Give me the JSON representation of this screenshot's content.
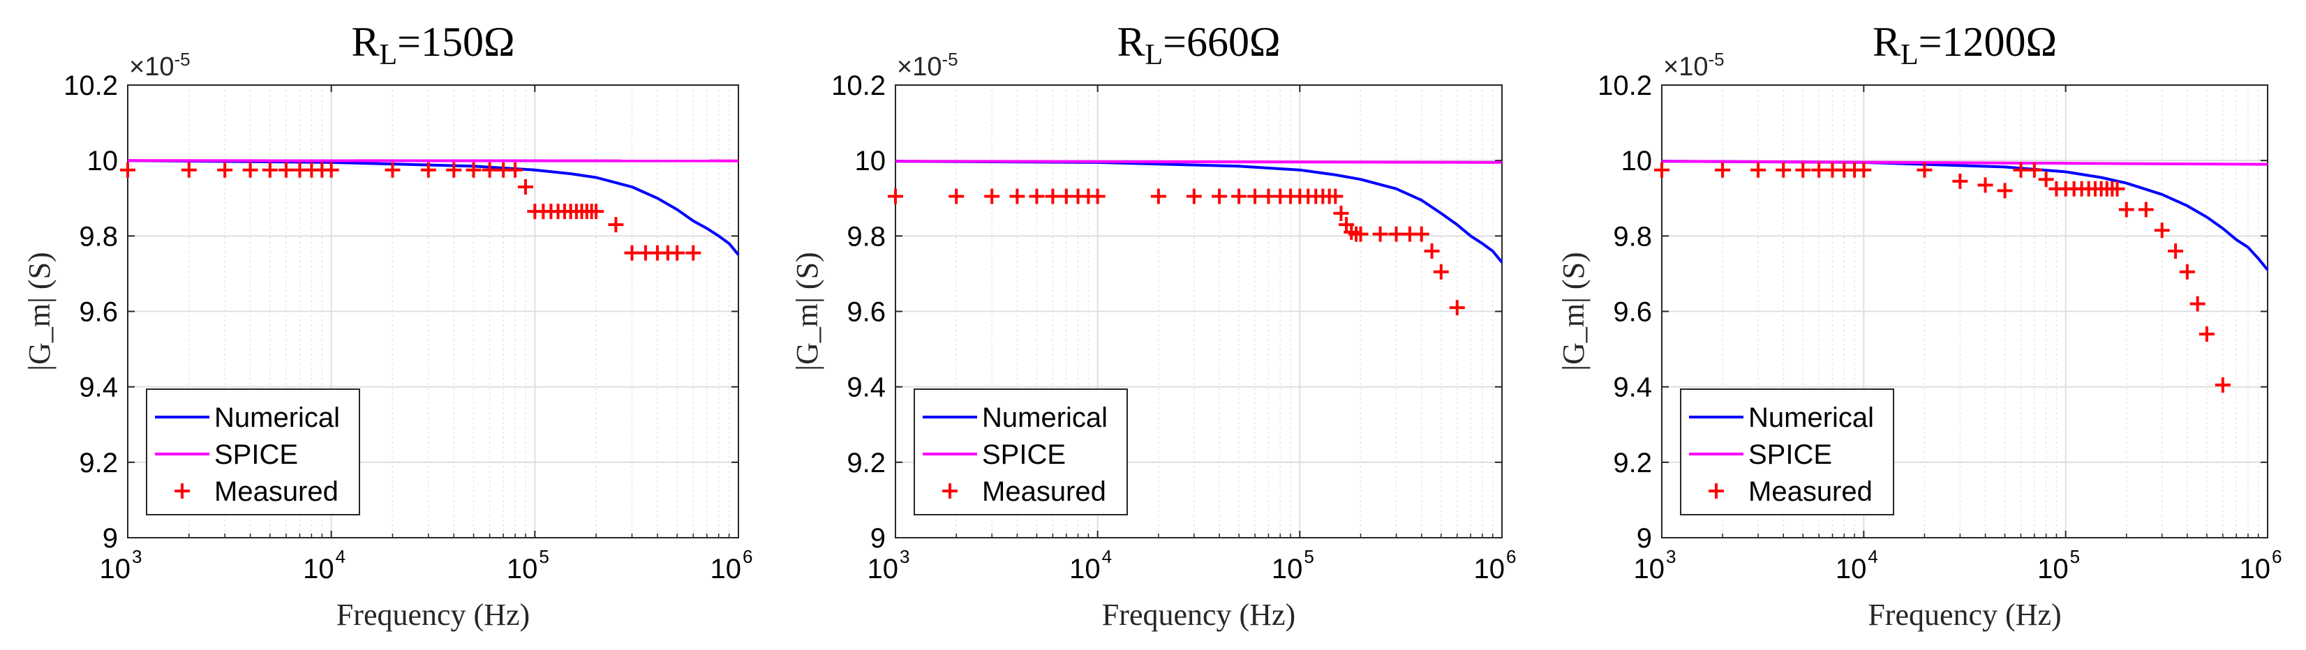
{
  "figure": {
    "colors": {
      "numerical": "#0000ff",
      "spice": "#ff00ff",
      "measured": "#ff0000"
    }
  },
  "chart_data": [
    {
      "type": "line",
      "title": {
        "main": "R",
        "sub": "L",
        "value": "=150Ω"
      },
      "xlabel": "Frequency (Hz)",
      "ylabel": "|G_m| (S)",
      "yscale_factor": "×10",
      "yscale_exp": "-5",
      "xscale": "log",
      "xlim": [
        1000,
        1000000
      ],
      "ylim": [
        9.0,
        10.2
      ],
      "yticks": [
        "9",
        "9.2",
        "9.4",
        "9.6",
        "9.8",
        "10",
        "10.2"
      ],
      "xticks": [
        {
          "base": "10",
          "exp": "3"
        },
        {
          "base": "10",
          "exp": "4"
        },
        {
          "base": "10",
          "exp": "5"
        },
        {
          "base": "10",
          "exp": "6"
        }
      ],
      "grid": true,
      "legend": {
        "position": "bottom-left",
        "entries": [
          "Numerical",
          "SPICE",
          "Measured"
        ]
      },
      "series": [
        {
          "name": "Numerical",
          "style": "line",
          "x": [
            1000,
            10000,
            50000,
            100000,
            150000,
            200000,
            300000,
            400000,
            500000,
            600000,
            700000,
            800000,
            900000,
            1000000
          ],
          "y": [
            10.0,
            9.995,
            9.985,
            9.975,
            9.965,
            9.955,
            9.93,
            9.9,
            9.87,
            9.84,
            9.82,
            9.8,
            9.78,
            9.75
          ]
        },
        {
          "name": "SPICE",
          "style": "line",
          "x": [
            1000,
            1000000
          ],
          "y": [
            10.0,
            9.999
          ]
        },
        {
          "name": "Measured",
          "style": "plus",
          "x": [
            1000,
            2000,
            3000,
            4000,
            5000,
            6000,
            7000,
            8000,
            9000,
            10000,
            20000,
            30000,
            40000,
            50000,
            60000,
            70000,
            80000,
            90000,
            100000,
            110000,
            120000,
            130000,
            140000,
            150000,
            160000,
            170000,
            180000,
            190000,
            200000,
            250000,
            300000,
            350000,
            400000,
            450000,
            500000,
            600000
          ],
          "y": [
            9.975,
            9.975,
            9.975,
            9.975,
            9.975,
            9.975,
            9.975,
            9.975,
            9.975,
            9.975,
            9.975,
            9.975,
            9.975,
            9.975,
            9.975,
            9.975,
            9.975,
            9.93,
            9.865,
            9.865,
            9.865,
            9.865,
            9.865,
            9.865,
            9.865,
            9.865,
            9.865,
            9.865,
            9.865,
            9.83,
            9.755,
            9.755,
            9.755,
            9.755,
            9.755,
            9.755
          ]
        }
      ]
    },
    {
      "type": "line",
      "title": {
        "main": "R",
        "sub": "L",
        "value": "=660Ω"
      },
      "xlabel": "Frequency (Hz)",
      "ylabel": "|G_m| (S)",
      "yscale_factor": "×10",
      "yscale_exp": "-5",
      "xscale": "log",
      "xlim": [
        1000,
        1000000
      ],
      "ylim": [
        9.0,
        10.2
      ],
      "yticks": [
        "9",
        "9.2",
        "9.4",
        "9.6",
        "9.8",
        "10",
        "10.2"
      ],
      "xticks": [
        {
          "base": "10",
          "exp": "3"
        },
        {
          "base": "10",
          "exp": "4"
        },
        {
          "base": "10",
          "exp": "5"
        },
        {
          "base": "10",
          "exp": "6"
        }
      ],
      "grid": true,
      "legend": {
        "position": "bottom-left",
        "entries": [
          "Numerical",
          "SPICE",
          "Measured"
        ]
      },
      "series": [
        {
          "name": "Numerical",
          "style": "line",
          "x": [
            1000,
            10000,
            50000,
            100000,
            150000,
            200000,
            300000,
            400000,
            500000,
            600000,
            700000,
            800000,
            900000,
            1000000
          ],
          "y": [
            9.998,
            9.995,
            9.985,
            9.975,
            9.962,
            9.95,
            9.925,
            9.895,
            9.86,
            9.83,
            9.8,
            9.78,
            9.76,
            9.73
          ]
        },
        {
          "name": "SPICE",
          "style": "line",
          "x": [
            1000,
            1000000
          ],
          "y": [
            9.998,
            9.995
          ]
        },
        {
          "name": "Measured",
          "style": "plus",
          "x": [
            1000,
            2000,
            3000,
            4000,
            5000,
            6000,
            7000,
            8000,
            9000,
            10000,
            20000,
            30000,
            40000,
            50000,
            60000,
            70000,
            80000,
            90000,
            100000,
            110000,
            120000,
            130000,
            140000,
            150000,
            160000,
            170000,
            180000,
            190000,
            200000,
            250000,
            300000,
            350000,
            400000,
            450000,
            500000,
            600000
          ],
          "y": [
            9.905,
            9.905,
            9.905,
            9.905,
            9.905,
            9.905,
            9.905,
            9.905,
            9.905,
            9.905,
            9.905,
            9.905,
            9.905,
            9.905,
            9.905,
            9.905,
            9.905,
            9.905,
            9.905,
            9.905,
            9.905,
            9.905,
            9.905,
            9.905,
            9.86,
            9.83,
            9.81,
            9.805,
            9.805,
            9.805,
            9.805,
            9.805,
            9.805,
            9.76,
            9.705,
            9.61
          ]
        }
      ]
    },
    {
      "type": "line",
      "title": {
        "main": "R",
        "sub": "L",
        "value": "=1200Ω"
      },
      "xlabel": "Frequency (Hz)",
      "ylabel": "|G_m| (S)",
      "yscale_factor": "×10",
      "yscale_exp": "-5",
      "xscale": "log",
      "xlim": [
        1000,
        1000000
      ],
      "ylim": [
        9.0,
        10.2
      ],
      "yticks": [
        "9",
        "9.2",
        "9.4",
        "9.6",
        "9.8",
        "10",
        "10.2"
      ],
      "xticks": [
        {
          "base": "10",
          "exp": "3"
        },
        {
          "base": "10",
          "exp": "4"
        },
        {
          "base": "10",
          "exp": "5"
        },
        {
          "base": "10",
          "exp": "6"
        }
      ],
      "grid": true,
      "legend": {
        "position": "bottom-left",
        "entries": [
          "Numerical",
          "SPICE",
          "Measured"
        ]
      },
      "series": [
        {
          "name": "Numerical",
          "style": "line",
          "x": [
            1000,
            10000,
            50000,
            100000,
            150000,
            200000,
            300000,
            400000,
            500000,
            600000,
            700000,
            800000,
            900000,
            1000000
          ],
          "y": [
            9.998,
            9.995,
            9.983,
            9.97,
            9.955,
            9.94,
            9.91,
            9.88,
            9.85,
            9.82,
            9.79,
            9.77,
            9.74,
            9.71
          ]
        },
        {
          "name": "SPICE",
          "style": "line",
          "x": [
            1000,
            1000000
          ],
          "y": [
            9.998,
            9.99
          ]
        },
        {
          "name": "Measured",
          "style": "plus",
          "x": [
            1000,
            2000,
            3000,
            4000,
            5000,
            6000,
            7000,
            8000,
            9000,
            10000,
            20000,
            30000,
            40000,
            50000,
            60000,
            70000,
            80000,
            90000,
            100000,
            110000,
            120000,
            130000,
            140000,
            150000,
            160000,
            170000,
            180000,
            200000,
            250000,
            300000,
            350000,
            400000,
            450000,
            500000,
            600000
          ],
          "y": [
            9.975,
            9.975,
            9.975,
            9.975,
            9.975,
            9.975,
            9.975,
            9.975,
            9.975,
            9.975,
            9.975,
            9.945,
            9.935,
            9.92,
            9.975,
            9.975,
            9.95,
            9.925,
            9.925,
            9.925,
            9.925,
            9.925,
            9.925,
            9.925,
            9.925,
            9.925,
            9.925,
            9.87,
            9.87,
            9.815,
            9.76,
            9.705,
            9.62,
            9.54,
            9.405
          ]
        }
      ]
    }
  ]
}
